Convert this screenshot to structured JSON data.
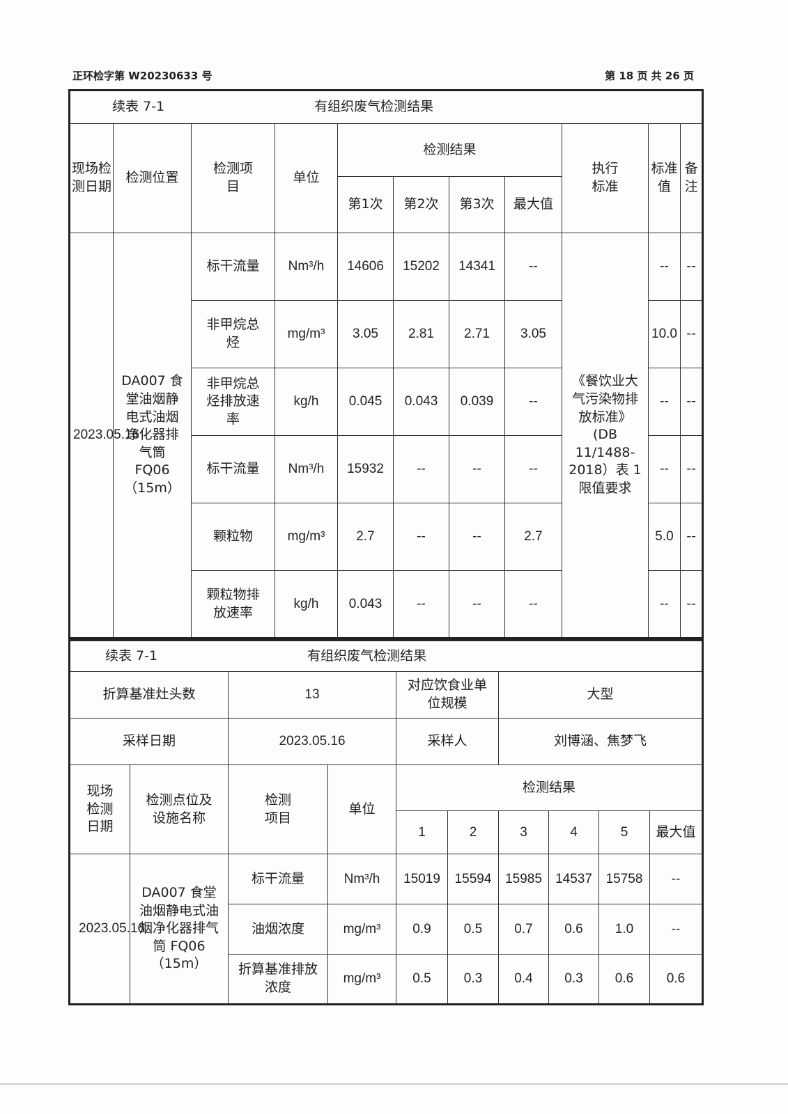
{
  "header": {
    "doc_no": "正环检字第 W20230633 号",
    "page": "第 18 页 共 26 页"
  },
  "table1": {
    "label": "续表 7-1",
    "title": "有组织废气检测结果",
    "headers": {
      "date": "现场检测日期",
      "location": "检测位置",
      "item": "检测项目",
      "unit": "单位",
      "results": "检测结果",
      "r1": "第1次",
      "r2": "第2次",
      "r3": "第3次",
      "max": "最大值",
      "standard": "执行标准",
      "limit": "标准值",
      "note": "备注"
    },
    "date": "2023.05.16",
    "location": "DA007 食堂油烟静电式油烟净化器排气筒 FQ06（15m）",
    "standard": "《餐饮业大气污染物排放标准》(DB 11/1488-2018）表 1 限值要求",
    "rows": [
      {
        "item": "标干流量",
        "unit": "Nm³/h",
        "r1": "14606",
        "r2": "15202",
        "r3": "14341",
        "max": "--",
        "limit": "--",
        "note": "--"
      },
      {
        "item": "非甲烷总烃",
        "unit": "mg/m³",
        "r1": "3.05",
        "r2": "2.81",
        "r3": "2.71",
        "max": "3.05",
        "limit": "10.0",
        "note": "--"
      },
      {
        "item": "非甲烷总烃排放速率",
        "unit": "kg/h",
        "r1": "0.045",
        "r2": "0.043",
        "r3": "0.039",
        "max": "--",
        "limit": "--",
        "note": "--"
      },
      {
        "item": "标干流量",
        "unit": "Nm³/h",
        "r1": "15932",
        "r2": "--",
        "r3": "--",
        "max": "--",
        "limit": "--",
        "note": "--"
      },
      {
        "item": "颗粒物",
        "unit": "mg/m³",
        "r1": "2.7",
        "r2": "--",
        "r3": "--",
        "max": "2.7",
        "limit": "5.0",
        "note": "--"
      },
      {
        "item": "颗粒物排放速率",
        "unit": "kg/h",
        "r1": "0.043",
        "r2": "--",
        "r3": "--",
        "max": "--",
        "limit": "--",
        "note": "--"
      }
    ]
  },
  "table2": {
    "label": "续表 7-1",
    "title": "有组织废气检测结果",
    "info": {
      "stoves_label": "折算基准灶头数",
      "stoves": "13",
      "scale_label": "对应饮食业单位规模",
      "scale": "大型",
      "date_label": "采样日期",
      "date": "2023.05.16",
      "sampler_label": "采样人",
      "sampler": "刘博涵、焦梦飞"
    },
    "headers": {
      "date": "现场检测日期",
      "location": "检测点位及设施名称",
      "item": "检测项目",
      "unit": "单位",
      "results": "检测结果",
      "c1": "1",
      "c2": "2",
      "c3": "3",
      "c4": "4",
      "c5": "5",
      "max": "最大值"
    },
    "date": "2023.05.16",
    "location": "DA007 食堂油烟静电式油烟净化器排气筒 FQ06（15m）",
    "rows": [
      {
        "item": "标干流量",
        "unit": "Nm³/h",
        "v": [
          "15019",
          "15594",
          "15985",
          "14537",
          "15758"
        ],
        "max": "--"
      },
      {
        "item": "油烟浓度",
        "unit": "mg/m³",
        "v": [
          "0.9",
          "0.5",
          "0.7",
          "0.6",
          "1.0"
        ],
        "max": "--"
      },
      {
        "item": "折算基准排放浓度",
        "unit": "mg/m³",
        "v": [
          "0.5",
          "0.3",
          "0.4",
          "0.3",
          "0.6"
        ],
        "max": "0.6"
      }
    ]
  }
}
